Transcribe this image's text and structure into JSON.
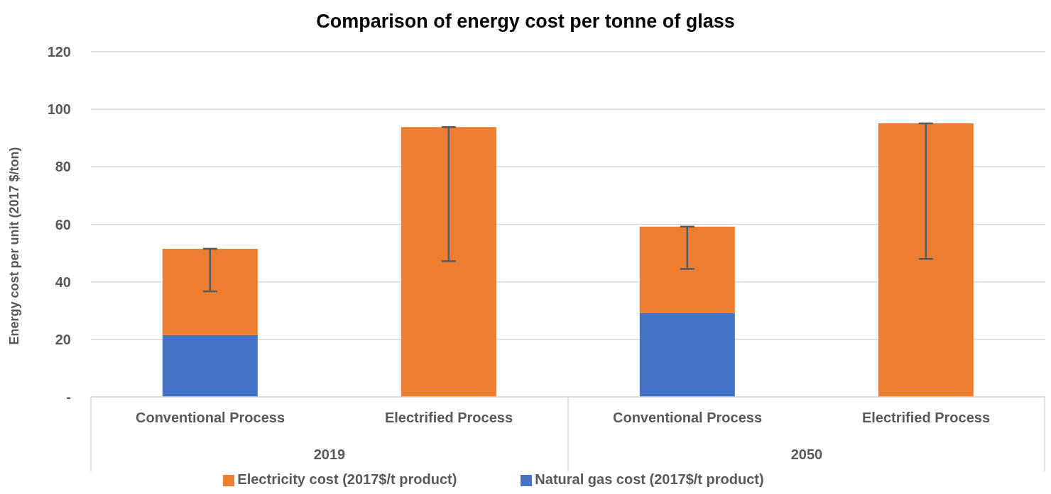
{
  "chart_data": {
    "type": "bar",
    "title": "Comparison of energy cost per tonne of glass",
    "ylabel": "Energy cost per unit (2017 $/ton)",
    "categories": [
      "Conventional Process",
      "Electrified Process",
      "Conventional Process",
      "Electrified Process"
    ],
    "annotations": [
      "2019",
      "2050"
    ],
    "stacked": true,
    "series": [
      {
        "name": "Natural gas cost (2017$/t product)",
        "color": "#4472c4",
        "values": [
          21.5,
          0,
          29.2,
          0
        ]
      },
      {
        "name": "Electricity cost (2017$/t product)",
        "color": "#ed7d31",
        "values": [
          30,
          93.8,
          30,
          95.1
        ],
        "errors": [
          [
            36.7,
            51.5
          ],
          [
            47.2,
            93.8
          ],
          [
            44.5,
            59.2
          ],
          [
            48,
            95.1
          ]
        ]
      }
    ],
    "ylim": [
      0,
      120
    ],
    "yticks": [
      {
        "value": 0,
        "label": "-"
      },
      20,
      40,
      60,
      80,
      100,
      120
    ],
    "grid": "y",
    "legend": "bottom"
  }
}
